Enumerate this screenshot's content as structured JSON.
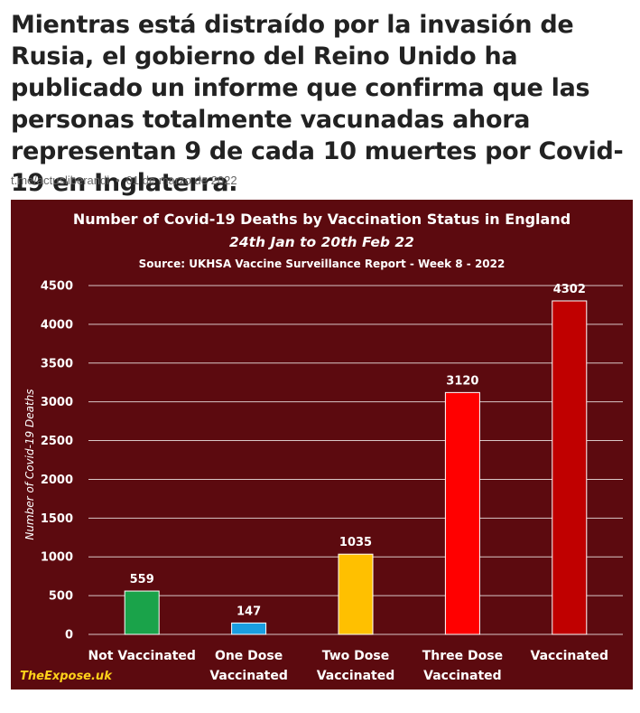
{
  "headline": "Mientras está distraído por la invasión de Rusia, el gobierno del Reino Unido ha publicado un informe que confirma que las personas totalmente vacunadas ahora representan 9 de cada 10 muertes por Covid-19 en Inglaterra.",
  "meta": {
    "source": "t.me/actusliberandi",
    "date": "01 de marzo de 2022"
  },
  "chart_data": {
    "type": "bar",
    "title": "Number of Covid-19 Deaths by Vaccination Status in England",
    "subtitle": "24th Jan to 20th Feb 22",
    "source_line": "Source: UKHSA Vaccine Surveillance Report - Week 8 - 2022",
    "ylabel": "Number of Covid-19 Deaths",
    "xlabel": "",
    "ylim": [
      0,
      4500
    ],
    "yticks": [
      0,
      500,
      1000,
      1500,
      2000,
      2500,
      3000,
      3500,
      4000,
      4500
    ],
    "grid": true,
    "categories": [
      [
        "Not Vaccinated"
      ],
      [
        "One Dose",
        "Vaccinated"
      ],
      [
        "Two Dose",
        "Vaccinated"
      ],
      [
        "Three Dose",
        "Vaccinated"
      ],
      [
        "Vaccinated"
      ]
    ],
    "values": [
      559,
      147,
      1035,
      3120,
      4302
    ],
    "colors": [
      "#1aa34a",
      "#1a9ee0",
      "#ffc000",
      "#ff0000",
      "#c00000"
    ],
    "background": "#5c0a0f",
    "watermark": "TheExpose.uk"
  }
}
